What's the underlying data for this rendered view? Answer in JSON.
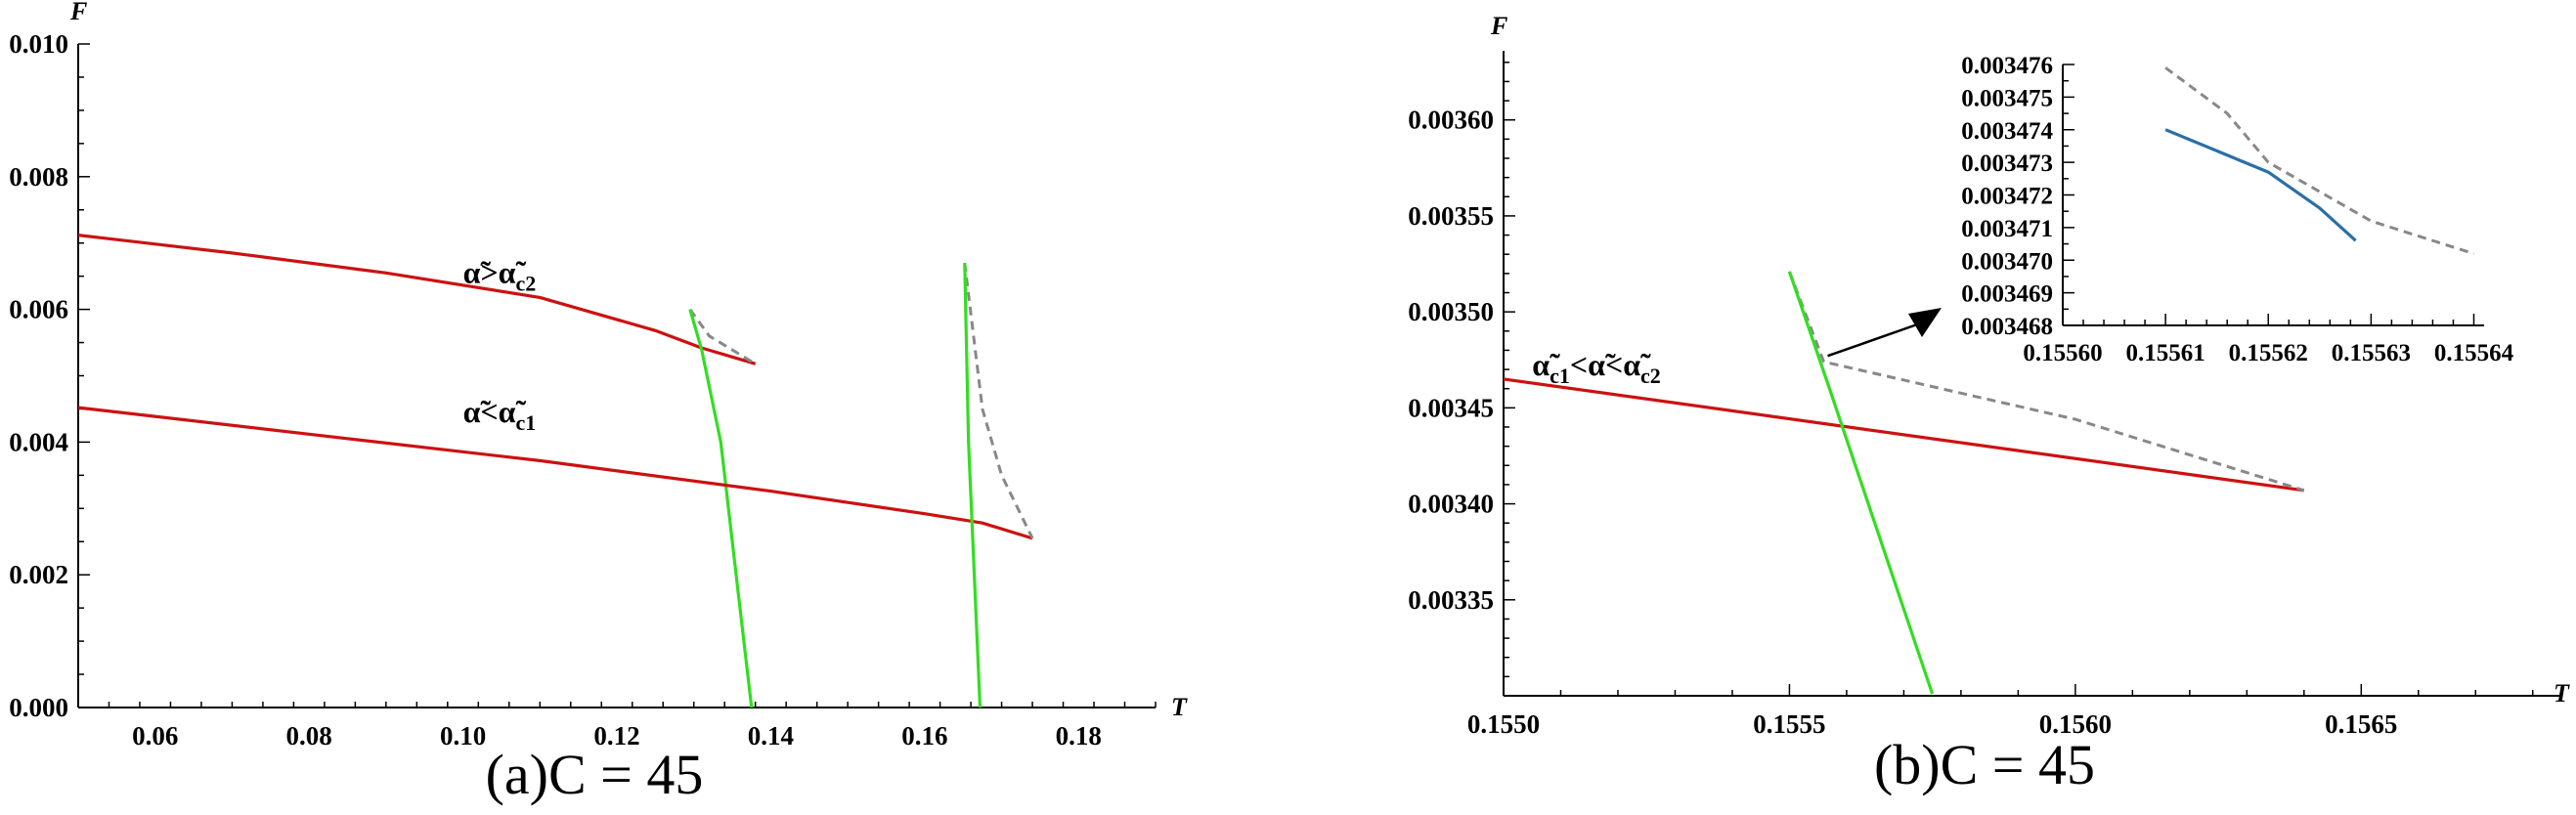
{
  "chart_data": [
    {
      "type": "line",
      "caption": "(a)C = 45",
      "xlabel": "T",
      "ylabel": "F",
      "xlim": [
        0.05,
        0.19
      ],
      "ylim": [
        0.0,
        0.01
      ],
      "x_ticks": [
        "0.06",
        "0.08",
        "0.10",
        "0.12",
        "0.14",
        "0.16",
        "0.18"
      ],
      "y_ticks": [
        "0.000",
        "0.002",
        "0.004",
        "0.006",
        "0.008",
        "0.010"
      ],
      "annotations": [
        {
          "text": "α̃>α̃",
          "sub": "c2",
          "x": 0.1,
          "y": 0.0064
        },
        {
          "text": "α̃<α̃",
          "sub": "c1",
          "x": 0.1,
          "y": 0.0043
        }
      ],
      "series": [
        {
          "color": "#cc1111",
          "style": "solid",
          "points": [
            [
              0.05,
              0.00712
            ],
            [
              0.07,
              0.00685
            ],
            [
              0.09,
              0.00655
            ],
            [
              0.11,
              0.00618
            ],
            [
              0.125,
              0.00568
            ],
            [
              0.131,
              0.00542
            ],
            [
              0.138,
              0.00518
            ]
          ]
        },
        {
          "color": "#888888",
          "style": "dashed",
          "points": [
            [
              0.1295,
              0.006
            ],
            [
              0.132,
              0.0056
            ],
            [
              0.138,
              0.00518
            ]
          ]
        },
        {
          "color": "#33dd22",
          "style": "solid",
          "points": [
            [
              0.1295,
              0.006
            ],
            [
              0.131,
              0.0054
            ],
            [
              0.1335,
              0.004
            ],
            [
              0.1355,
              0.002
            ],
            [
              0.1375,
              0.0
            ]
          ]
        },
        {
          "color": "#cc1111",
          "style": "solid",
          "points": [
            [
              0.05,
              0.00452
            ],
            [
              0.08,
              0.00412
            ],
            [
              0.11,
              0.00372
            ],
            [
              0.14,
              0.00326
            ],
            [
              0.16,
              0.00292
            ],
            [
              0.1675,
              0.00278
            ],
            [
              0.174,
              0.00255
            ]
          ]
        },
        {
          "color": "#888888",
          "style": "dashed",
          "points": [
            [
              0.1652,
              0.0067
            ],
            [
              0.1675,
              0.0045
            ],
            [
              0.17,
              0.0035
            ],
            [
              0.174,
              0.00255
            ]
          ]
        },
        {
          "color": "#33dd22",
          "style": "solid",
          "points": [
            [
              0.1652,
              0.0067
            ],
            [
              0.1657,
              0.004
            ],
            [
              0.1672,
              0.0
            ]
          ]
        }
      ]
    },
    {
      "type": "line",
      "caption": "(b)C = 45",
      "xlabel": "T",
      "ylabel": "F",
      "xlim": [
        0.155,
        0.15685
      ],
      "ylim": [
        0.0033,
        0.003636
      ],
      "x_ticks": [
        "0.1550",
        "0.1555",
        "0.1560",
        "0.1565"
      ],
      "y_ticks": [
        "0.00335",
        "0.00340",
        "0.00345",
        "0.00350",
        "0.00355",
        "0.00360"
      ],
      "annotations": [
        {
          "text": "α̃",
          "sub": "c1",
          "text2": "<α̃<α̃",
          "sub2": "c2",
          "x": 0.15505,
          "y": 0.003467
        }
      ],
      "series": [
        {
          "color": "#cc1111",
          "style": "solid",
          "points": [
            [
              0.155,
              0.003465
            ],
            [
              0.1564,
              0.003407
            ]
          ]
        },
        {
          "color": "#888888",
          "style": "dashed",
          "points": [
            [
              0.1555,
              0.003521
            ],
            [
              0.15556,
              0.003474
            ],
            [
              0.156,
              0.003444
            ],
            [
              0.1564,
              0.003407
            ]
          ]
        },
        {
          "color": "#33dd22",
          "style": "solid",
          "points": [
            [
              0.1555,
              0.003521
            ],
            [
              0.15557,
              0.00346
            ],
            [
              0.15575,
              0.003301
            ]
          ]
        }
      ],
      "inset": {
        "xlim": [
          0.1556,
          0.155641
        ],
        "ylim": [
          0.003468,
          0.003476
        ],
        "x_ticks": [
          "0.15560",
          "0.15561",
          "0.15562",
          "0.15563",
          "0.15564"
        ],
        "y_ticks": [
          "0.003468",
          "0.003469",
          "0.003470",
          "0.003471",
          "0.003472",
          "0.003473",
          "0.003474",
          "0.003475",
          "0.003476"
        ],
        "series": [
          {
            "color": "#888888",
            "style": "dashed",
            "points": [
              [
                0.15561,
                0.0034759
              ],
              [
                0.155616,
                0.0034745
              ],
              [
                0.15562,
                0.003473
              ],
              [
                0.15563,
                0.0034712
              ],
              [
                0.15564,
                0.0034702
              ]
            ]
          },
          {
            "color": "#2a6fa8",
            "style": "solid",
            "points": [
              [
                0.15561,
                0.003474
              ],
              [
                0.15562,
                0.0034727
              ],
              [
                0.155625,
                0.0034716
              ],
              [
                0.1556285,
                0.0034706
              ]
            ]
          }
        ]
      }
    }
  ]
}
